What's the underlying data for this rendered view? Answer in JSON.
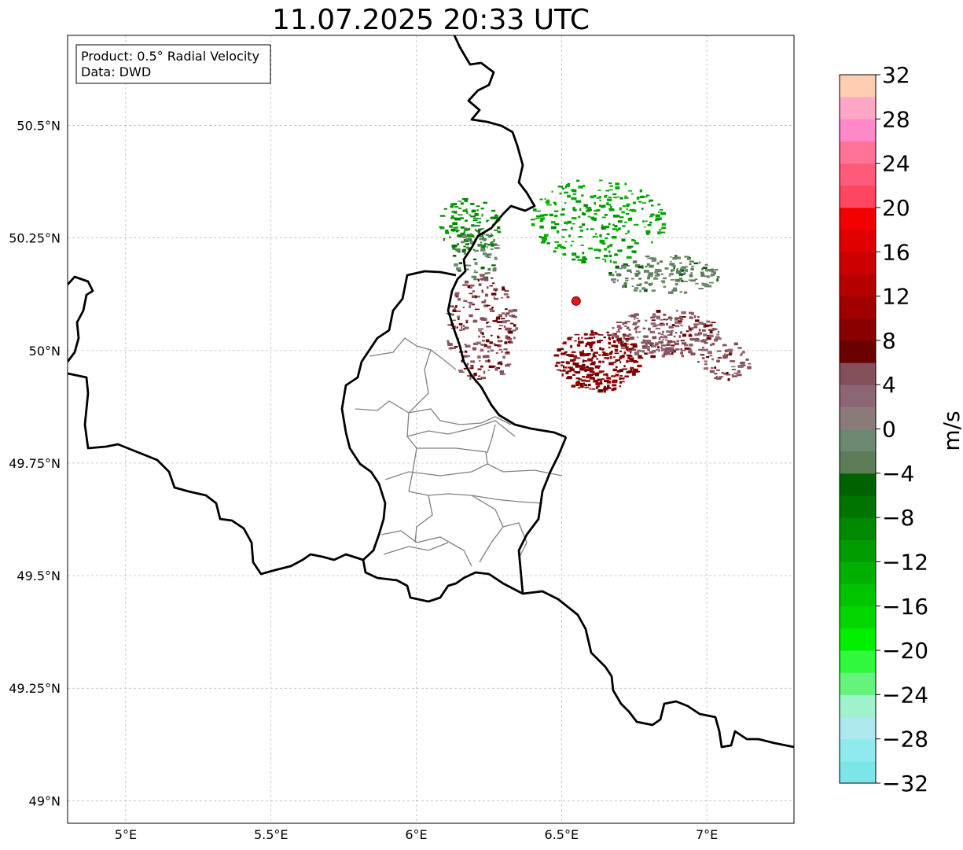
{
  "title": "11.07.2025 20:33 UTC",
  "info": {
    "product": "Product: 0.5° Radial Velocity",
    "source": "Data: DWD"
  },
  "axes": {
    "lon_range": [
      4.8,
      7.3
    ],
    "lat_range": [
      48.95,
      50.7
    ],
    "x_ticks": [
      {
        "value": 5.0,
        "label": "5°E"
      },
      {
        "value": 5.5,
        "label": "5.5°E"
      },
      {
        "value": 6.0,
        "label": "6°E"
      },
      {
        "value": 6.5,
        "label": "6.5°E"
      },
      {
        "value": 7.0,
        "label": "7°E"
      }
    ],
    "y_ticks": [
      {
        "value": 49.0,
        "label": "49°N"
      },
      {
        "value": 49.25,
        "label": "49.25°N"
      },
      {
        "value": 49.5,
        "label": "49.5°N"
      },
      {
        "value": 49.75,
        "label": "49.75°N"
      },
      {
        "value": 50.0,
        "label": "50°N"
      },
      {
        "value": 50.25,
        "label": "50.25°N"
      },
      {
        "value": 50.5,
        "label": "50.5°N"
      }
    ],
    "grid": true
  },
  "radar_site": {
    "lon": 6.55,
    "lat": 50.11,
    "color": "#e8121a"
  },
  "colorbar": {
    "unit": "m/s",
    "min": -32,
    "max": 32,
    "tick_labels": [
      {
        "value": 32,
        "label": "32"
      },
      {
        "value": 28,
        "label": "28"
      },
      {
        "value": 24,
        "label": "24"
      },
      {
        "value": 20,
        "label": "20"
      },
      {
        "value": 16,
        "label": "16"
      },
      {
        "value": 12,
        "label": "12"
      },
      {
        "value": 8,
        "label": "8"
      },
      {
        "value": 4,
        "label": "4"
      },
      {
        "value": 0,
        "label": "0"
      },
      {
        "value": -4,
        "label": "−4"
      },
      {
        "value": -8,
        "label": "−8"
      },
      {
        "value": -12,
        "label": "−12"
      },
      {
        "value": -16,
        "label": "−16"
      },
      {
        "value": -20,
        "label": "−20"
      },
      {
        "value": -24,
        "label": "−24"
      },
      {
        "value": -28,
        "label": "−28"
      },
      {
        "value": -32,
        "label": "−32"
      }
    ],
    "colors": [
      "#7ae6e8",
      "#8eeaec",
      "#ade8ee",
      "#9ff2cc",
      "#64f47c",
      "#30f83a",
      "#00f000",
      "#00d800",
      "#00c400",
      "#00b000",
      "#009c00",
      "#008800",
      "#007400",
      "#006200",
      "#5c7d58",
      "#6c8870",
      "#8a7a7a",
      "#8c6674",
      "#845059",
      "#6a0000",
      "#8a0000",
      "#a00000",
      "#b60000",
      "#cc0000",
      "#e00000",
      "#f20000",
      "#fe4660",
      "#fe5a7a",
      "#fe7296",
      "#fe88c8",
      "#fea6c6",
      "#ffcdb1"
    ]
  },
  "chart_data": {
    "type": "radar_velocity_map",
    "title": "11.07.2025 20:33 UTC",
    "product": "0.5° Radial Velocity",
    "source": "DWD",
    "unit": "m/s",
    "value_range": [
      -32,
      32
    ],
    "radar_site": {
      "lon": 6.55,
      "lat": 50.11
    },
    "echo_regions": [
      {
        "lon": 6.62,
        "lat": 50.29,
        "value": -12
      },
      {
        "lon": 6.18,
        "lat": 50.28,
        "value": -10
      },
      {
        "lon": 6.85,
        "lat": 50.17,
        "value": -3
      },
      {
        "lon": 6.2,
        "lat": 50.22,
        "value": -3
      },
      {
        "lon": 6.62,
        "lat": 49.98,
        "value": 8
      },
      {
        "lon": 6.22,
        "lat": 50.05,
        "value": 5
      },
      {
        "lon": 6.85,
        "lat": 50.04,
        "value": 4
      },
      {
        "lon": 7.05,
        "lat": 49.98,
        "value": 4
      }
    ]
  }
}
